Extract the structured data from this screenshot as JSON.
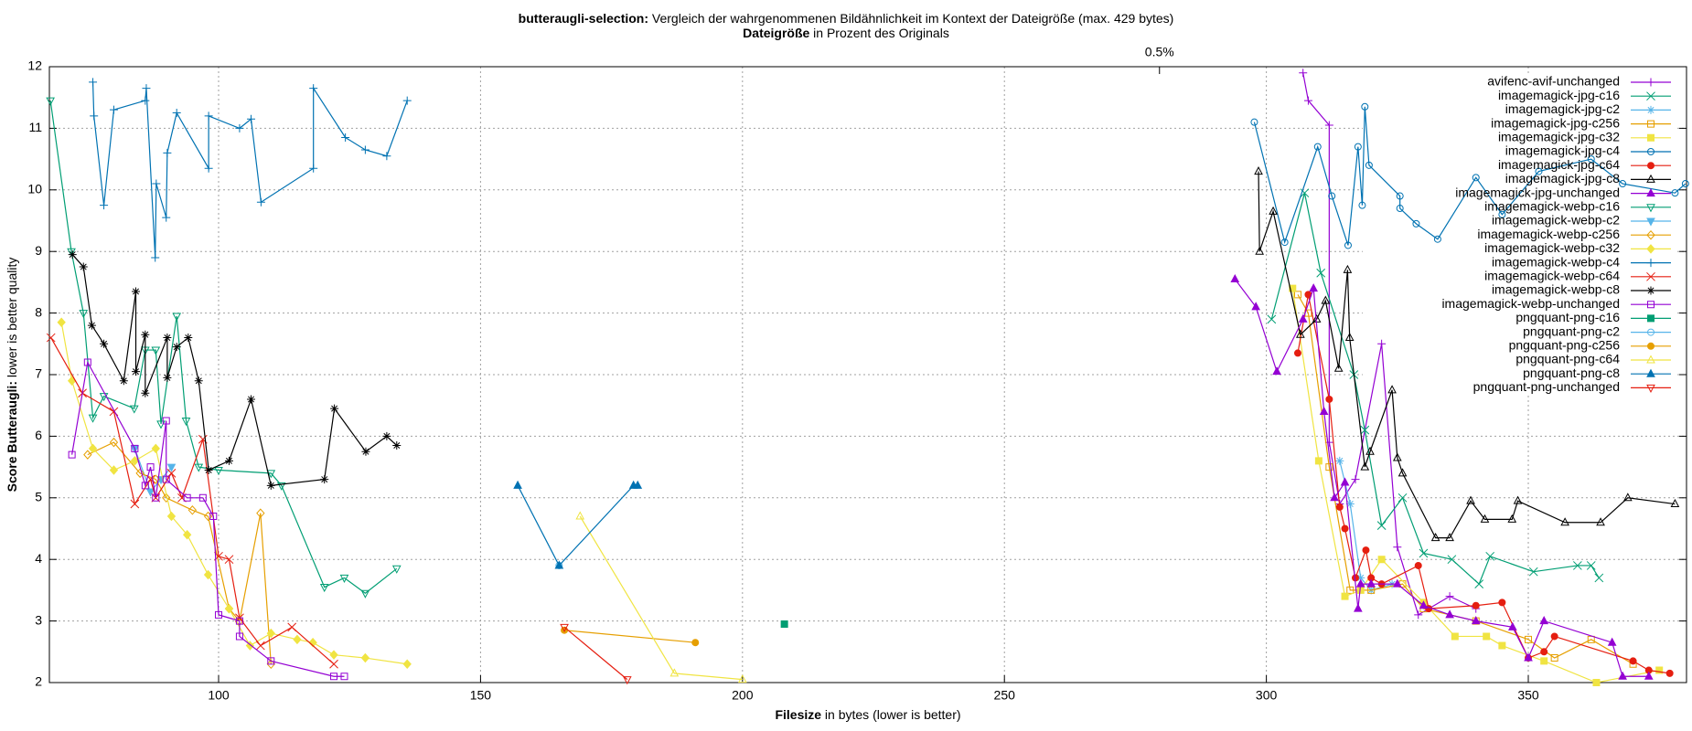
{
  "chart_data": {
    "type": "line",
    "title": [
      "butteraugli-selection:",
      " Vergleich der wahrgenommenen Bildähnlichkeit im Kontext der Dateigröße (max. 429 bytes)"
    ],
    "subtitle": [
      "Dateigröße",
      " in Prozent des Originals"
    ],
    "xlabel": [
      "Filesize",
      " in bytes (lower is better)"
    ],
    "ylabel": [
      "Score Butteraugli:",
      " lower is better quality"
    ],
    "xlim": [
      67.7,
      380.2
    ],
    "ylim": [
      2,
      12
    ],
    "xticks": [
      100,
      150,
      200,
      250,
      300,
      350
    ],
    "yticks": [
      2,
      3,
      4,
      5,
      6,
      7,
      8,
      9,
      10,
      11,
      12
    ],
    "x2ticks": [
      {
        "value": 279.6,
        "label": "0.5%"
      }
    ],
    "grid": true,
    "legend": "top-right",
    "series": [
      {
        "name": "avifenc-avif-unchanged",
        "color": "#9400d3",
        "marker": "plus",
        "x": [
          307,
          308,
          312,
          312,
          314,
          317,
          322,
          325,
          329,
          335,
          340
        ],
        "values": [
          11.9,
          11.45,
          11.05,
          5.9,
          4.9,
          5.3,
          7.5,
          4.2,
          3.1,
          3.4,
          3.2
        ]
      },
      {
        "name": "imagemagick-jpg-c16",
        "color": "#009e73",
        "marker": "cross",
        "x": [
          301,
          307.3,
          310.4,
          316.7,
          318.8,
          322,
          326,
          330,
          335.4,
          340.6,
          342.7,
          351,
          359.4,
          362,
          363.5
        ],
        "values": [
          7.9,
          9.95,
          8.65,
          7.0,
          6.1,
          4.55,
          5.0,
          4.1,
          4.0,
          3.6,
          4.05,
          3.8,
          3.9,
          3.9,
          3.7
        ]
      },
      {
        "name": "imagemagick-jpg-c2",
        "color": "#56b4e9",
        "marker": "star",
        "x": [
          314,
          316,
          318,
          320,
          324
        ],
        "values": [
          5.6,
          4.9,
          3.7,
          3.5,
          3.6
        ]
      },
      {
        "name": "imagemagick-jpg-c256",
        "color": "#e69f00",
        "marker": "square",
        "x": [
          306,
          308,
          312,
          316,
          320,
          326,
          330,
          340,
          350,
          355,
          362,
          370
        ],
        "values": [
          8.3,
          8.0,
          5.5,
          3.5,
          3.5,
          3.6,
          3.2,
          3.0,
          2.7,
          2.4,
          2.7,
          2.3
        ]
      },
      {
        "name": "imagemagick-jpg-c32",
        "color": "#f0e442",
        "marker": "square-filled",
        "x": [
          305,
          310,
          315,
          318,
          322,
          330,
          336,
          342,
          345,
          353,
          363,
          375
        ],
        "values": [
          8.4,
          5.6,
          3.4,
          3.5,
          4.0,
          3.3,
          2.75,
          2.75,
          2.6,
          2.35,
          2.0,
          2.2
        ]
      },
      {
        "name": "imagemagick-jpg-c4",
        "color": "#0072b2",
        "marker": "circle",
        "x": [
          297.7,
          303.5,
          309.8,
          312.5,
          315.6,
          317.5,
          318.3,
          318.8,
          319.6,
          325.5,
          325.5,
          328.6,
          332.7,
          340,
          345,
          352,
          362,
          368,
          378,
          380
        ],
        "values": [
          11.1,
          9.15,
          10.7,
          9.9,
          9.1,
          10.7,
          9.75,
          11.35,
          10.4,
          9.9,
          9.7,
          9.45,
          9.2,
          10.2,
          9.6,
          10.3,
          10.5,
          10.1,
          9.95,
          10.1
        ]
      },
      {
        "name": "imagemagick-jpg-c64",
        "color": "#e51e10",
        "marker": "circle-filled",
        "x": [
          306,
          308,
          312,
          314,
          315,
          317,
          319,
          320,
          322,
          329,
          331,
          340,
          345,
          350,
          353,
          355,
          370,
          373,
          377
        ],
        "values": [
          7.35,
          8.3,
          6.6,
          4.85,
          4.5,
          3.7,
          4.15,
          3.7,
          3.6,
          3.9,
          3.2,
          3.25,
          3.3,
          2.4,
          2.5,
          2.75,
          2.35,
          2.2,
          2.15
        ]
      },
      {
        "name": "imagemagick-jpg-c8",
        "color": "#000000",
        "marker": "triangle",
        "x": [
          298.5,
          298.7,
          301.3,
          306.5,
          309.6,
          311.3,
          313.8,
          315.5,
          315.9,
          318.8,
          319.8,
          324,
          325,
          326,
          332.3,
          335,
          339,
          341.7,
          346.9,
          348,
          357,
          363.8,
          369,
          378
        ],
        "values": [
          10.3,
          9.0,
          9.65,
          7.65,
          7.9,
          8.2,
          7.1,
          8.7,
          7.6,
          5.5,
          5.75,
          6.75,
          5.65,
          5.4,
          4.35,
          4.35,
          4.95,
          4.65,
          4.65,
          4.95,
          4.6,
          4.6,
          5.0,
          4.9
        ]
      },
      {
        "name": "imagemagick-jpg-unchanged",
        "color": "#9400d3",
        "marker": "triangle-filled",
        "x": [
          294,
          298,
          302,
          307,
          309,
          311,
          313,
          315,
          317.5,
          318,
          320,
          325,
          330,
          335,
          340,
          347,
          350,
          353,
          366,
          368,
          373
        ],
        "values": [
          8.55,
          8.1,
          7.05,
          7.9,
          8.4,
          6.4,
          5.0,
          5.25,
          3.2,
          3.6,
          3.6,
          3.6,
          3.25,
          3.1,
          3.0,
          2.9,
          2.4,
          3.0,
          2.65,
          2.1,
          2.1
        ]
      },
      {
        "name": "imagemagick-webp-c16",
        "color": "#009e73",
        "marker": "down",
        "x": [
          67.9,
          71.9,
          74.2,
          76,
          78.1,
          83.9,
          86,
          88,
          89,
          92,
          93.8,
          96.2,
          100,
          110,
          112,
          120.2,
          124,
          128,
          134
        ],
        "values": [
          11.45,
          9.0,
          8.0,
          6.3,
          6.65,
          6.45,
          7.4,
          7.4,
          6.2,
          7.95,
          6.25,
          5.5,
          5.45,
          5.4,
          5.2,
          3.55,
          3.7,
          3.45,
          3.85
        ]
      },
      {
        "name": "imagemagick-webp-c2",
        "color": "#56b4e9",
        "marker": "down-filled",
        "x": [
          84,
          87,
          89,
          91
        ],
        "values": [
          5.8,
          5.1,
          5.3,
          5.5
        ]
      },
      {
        "name": "imagemagick-webp-c256",
        "color": "#e69f00",
        "marker": "diamond",
        "x": [
          75,
          80,
          85,
          88,
          90,
          95,
          98,
          102,
          104,
          108,
          110
        ],
        "values": [
          5.7,
          5.9,
          5.4,
          5.3,
          5.0,
          4.8,
          4.7,
          3.2,
          3.0,
          4.75,
          2.3
        ]
      },
      {
        "name": "imagemagick-webp-c32",
        "color": "#f0e442",
        "marker": "diamond-filled",
        "x": [
          70,
          72,
          76,
          80,
          84,
          88,
          91,
          94,
          98,
          102,
          106,
          110,
          115,
          118,
          122,
          128,
          136
        ],
        "values": [
          7.85,
          6.9,
          5.8,
          5.45,
          5.6,
          5.8,
          4.7,
          4.4,
          3.75,
          3.2,
          2.6,
          2.8,
          2.7,
          2.65,
          2.45,
          2.4,
          2.3
        ]
      },
      {
        "name": "imagemagick-webp-c4",
        "color": "#0072b2",
        "marker": "plus",
        "x": [
          76,
          76.2,
          78.1,
          80,
          86,
          86.2,
          87.9,
          88.1,
          90,
          90.2,
          92,
          98.1,
          98.1,
          104,
          106.2,
          108.1,
          118.1,
          118.1,
          124.2,
          128,
          132.1,
          136
        ],
        "values": [
          11.75,
          11.2,
          9.75,
          11.3,
          11.45,
          11.65,
          8.9,
          10.1,
          9.55,
          10.6,
          11.25,
          10.35,
          11.2,
          11.0,
          11.15,
          9.8,
          10.35,
          11.65,
          10.85,
          10.65,
          10.55,
          11.45
        ]
      },
      {
        "name": "imagemagick-webp-c64",
        "color": "#e51e10",
        "marker": "cross",
        "x": [
          68,
          74,
          80,
          84,
          87,
          88,
          91,
          93,
          97,
          100,
          102,
          104,
          108,
          114,
          122
        ],
        "values": [
          7.6,
          6.7,
          6.4,
          4.9,
          5.3,
          5.0,
          5.4,
          5.0,
          5.95,
          4.05,
          4.0,
          3.05,
          2.6,
          2.9,
          2.3
        ]
      },
      {
        "name": "imagemagick-webp-c8",
        "color": "#000000",
        "marker": "star",
        "x": [
          72.1,
          74.2,
          75.8,
          78.1,
          81.9,
          84.2,
          84.2,
          86,
          86,
          90.2,
          90.2,
          92,
          94.2,
          96.2,
          98.1,
          102,
          106.2,
          110,
          120.2,
          122.1,
          128.1,
          132.1,
          134
        ],
        "values": [
          8.95,
          8.75,
          7.8,
          7.5,
          6.9,
          8.35,
          7.05,
          7.65,
          6.7,
          7.6,
          6.95,
          7.45,
          7.6,
          6.9,
          5.45,
          5.6,
          6.6,
          5.2,
          5.3,
          6.45,
          5.75,
          6.0,
          5.85
        ]
      },
      {
        "name": "imagemagick-webp-unchanged",
        "color": "#9400d3",
        "marker": "square",
        "x": [
          72,
          75,
          84,
          86,
          87,
          88,
          90,
          90,
          94,
          97,
          99,
          100,
          104,
          104,
          110,
          122,
          124
        ],
        "values": [
          5.7,
          7.2,
          5.8,
          5.2,
          5.5,
          5.0,
          6.25,
          5.3,
          5.0,
          5.0,
          4.7,
          3.1,
          3.0,
          2.75,
          2.35,
          2.1,
          2.1
        ]
      },
      {
        "name": "pngquant-png-c16",
        "color": "#009e73",
        "marker": "square-filled",
        "x": [
          208
        ],
        "values": [
          2.95
        ]
      },
      {
        "name": "pngquant-png-c2",
        "color": "#56b4e9",
        "marker": "circle",
        "x": [
          165
        ],
        "values": [
          3.9
        ]
      },
      {
        "name": "pngquant-png-c256",
        "color": "#e69f00",
        "marker": "circle-filled",
        "x": [
          166,
          191
        ],
        "values": [
          2.85,
          2.65
        ]
      },
      {
        "name": "pngquant-png-c64",
        "color": "#f0e442",
        "marker": "triangle",
        "x": [
          169,
          187,
          200
        ],
        "values": [
          4.7,
          2.15,
          2.05
        ]
      },
      {
        "name": "pngquant-png-c8",
        "color": "#0072b2",
        "marker": "triangle-filled",
        "x": [
          157.1,
          165,
          179.2,
          180
        ],
        "values": [
          5.2,
          3.9,
          5.2,
          5.2
        ]
      },
      {
        "name": "pngquant-png-unchanged",
        "color": "#e51e10",
        "marker": "down",
        "x": [
          166,
          178
        ],
        "values": [
          2.9,
          2.05
        ]
      }
    ]
  }
}
